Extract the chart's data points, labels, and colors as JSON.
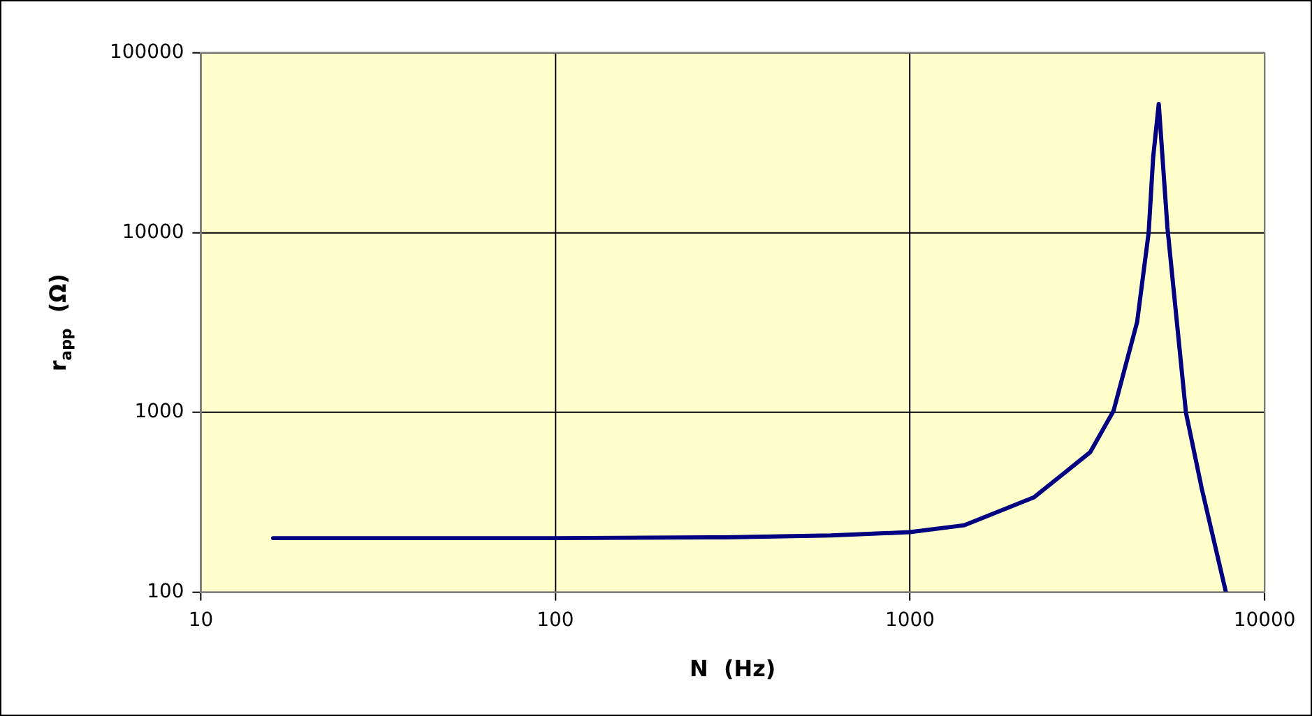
{
  "chart_data": {
    "type": "line",
    "xlabel": "N  (Hz)",
    "ylabel": "r$_{app}$  (Ω)",
    "log": "xy",
    "grid": true,
    "legend": false,
    "marker": "none",
    "line_style": "solid",
    "xlim": [
      10,
      10000
    ],
    "xticks": [
      10,
      100,
      1000,
      10000
    ],
    "ylim": [
      100,
      100000
    ],
    "yticks": [
      100,
      1000,
      10000,
      100000
    ],
    "x": [
      16,
      100,
      300,
      600,
      1000,
      1425,
      2240,
      3220,
      3750,
      4370,
      4710,
      4850,
      5030,
      5320,
      6000,
      6650,
      7780
    ],
    "series": [
      {
        "color": "#000080",
        "values": [
          200,
          200,
          202,
          207,
          216,
          236,
          338,
          600,
          1020,
          3180,
          10000,
          26200,
          52000,
          10700,
          1000,
          377,
          100
        ]
      }
    ]
  }
}
